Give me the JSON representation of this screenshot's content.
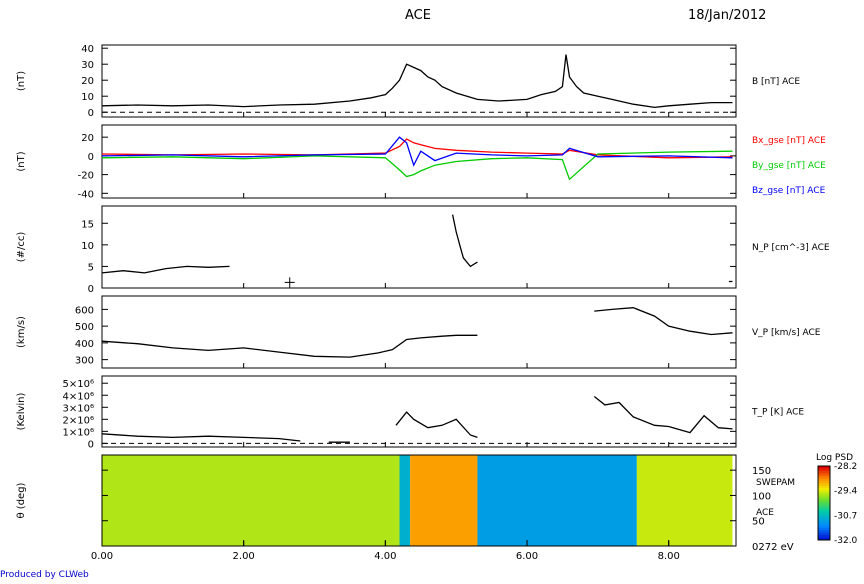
{
  "header": {
    "spacecraft": "ACE",
    "date": "18/Jan/2012"
  },
  "footer": {
    "produced_by": "Produced by CLWeb"
  },
  "colors": {
    "bx": "#ff0000",
    "by": "#00cc00",
    "bz": "#0000ff",
    "trace": "#000000"
  },
  "chart_data": [
    {
      "id": "panel-b",
      "type": "line",
      "ylabel": "(nT)",
      "ylim": [
        -3,
        42
      ],
      "yticks": [
        0,
        10,
        20,
        30,
        40
      ],
      "ytick_labels": [
        "0",
        "10",
        "20",
        "30",
        "40"
      ],
      "series": [
        {
          "name": "B [nT] ACE",
          "color": "#000000",
          "x": [
            0.0,
            0.5,
            1.0,
            1.5,
            2.0,
            2.5,
            3.0,
            3.5,
            3.8,
            4.0,
            4.1,
            4.2,
            4.3,
            4.4,
            4.5,
            4.6,
            4.7,
            4.8,
            5.0,
            5.3,
            5.6,
            6.0,
            6.2,
            6.4,
            6.5,
            6.55,
            6.6,
            6.7,
            6.8,
            7.0,
            7.2,
            7.5,
            7.8,
            8.0,
            8.3,
            8.6,
            8.9
          ],
          "y": [
            4,
            4.5,
            4,
            4.5,
            3.5,
            4.5,
            5,
            7,
            9,
            11,
            15,
            20,
            30,
            28,
            26,
            22,
            20,
            16,
            12,
            8,
            7,
            8,
            11,
            13,
            16,
            36,
            22,
            16,
            12,
            10,
            8,
            5,
            3,
            4,
            5,
            6,
            6
          ]
        }
      ],
      "reference_line_y": 0
    },
    {
      "id": "panel-bxyz",
      "type": "line",
      "ylabel": "(nT)",
      "ylim": [
        -45,
        33
      ],
      "yticks": [
        -40,
        -20,
        0,
        20
      ],
      "ytick_labels": [
        "-40",
        "-20",
        "0",
        "20"
      ],
      "series": [
        {
          "name": "Bx_gse [nT] ACE",
          "color": "#ff0000",
          "x": [
            0.0,
            1.0,
            2.0,
            3.0,
            4.0,
            4.2,
            4.3,
            4.4,
            4.5,
            4.7,
            5.0,
            5.5,
            6.0,
            6.5,
            6.6,
            7.0,
            8.0,
            8.9
          ],
          "y": [
            2,
            1,
            2,
            1,
            3,
            10,
            18,
            14,
            12,
            8,
            6,
            4,
            3,
            2,
            6,
            1,
            -2,
            -1
          ]
        },
        {
          "name": "By_gse [nT] ACE",
          "color": "#00cc00",
          "x": [
            0.0,
            1.0,
            2.0,
            3.0,
            4.0,
            4.2,
            4.3,
            4.4,
            4.5,
            4.7,
            5.0,
            5.5,
            6.0,
            6.5,
            6.6,
            7.0,
            8.0,
            8.9
          ],
          "y": [
            -2,
            -1,
            -3,
            0,
            -2,
            -15,
            -22,
            -20,
            -16,
            -10,
            -6,
            -3,
            -2,
            -4,
            -25,
            2,
            4,
            5
          ]
        },
        {
          "name": "Bz_gse [nT] ACE",
          "color": "#0000ff",
          "x": [
            0.0,
            1.0,
            2.0,
            3.0,
            4.0,
            4.2,
            4.3,
            4.4,
            4.5,
            4.7,
            5.0,
            5.5,
            6.0,
            6.5,
            6.6,
            7.0,
            8.0,
            8.9
          ],
          "y": [
            0,
            1,
            -1,
            1,
            2,
            20,
            14,
            -10,
            5,
            -5,
            3,
            1,
            0,
            1,
            8,
            -1,
            0,
            -2
          ]
        }
      ]
    },
    {
      "id": "panel-np",
      "type": "line",
      "ylabel": "(#/cc)",
      "ylim": [
        0,
        19
      ],
      "yticks": [
        0,
        5,
        10,
        15
      ],
      "ytick_labels": [
        "0",
        "5",
        "10",
        "15"
      ],
      "series": [
        {
          "name": "N_P [cm^-3] ACE",
          "color": "#000000",
          "segments": [
            {
              "x": [
                0.0,
                0.3,
                0.6,
                0.9,
                1.2,
                1.5,
                1.8
              ],
              "y": [
                3.5,
                4,
                3.5,
                4.5,
                5,
                4.8,
                5
              ]
            },
            {
              "x": [
                4.95,
                5.0,
                5.05,
                5.1,
                5.2,
                5.3
              ],
              "y": [
                17,
                13,
                10,
                7,
                5,
                6
              ]
            },
            {
              "x": [
                8.85,
                8.9
              ],
              "y": [
                1.5,
                1.5
              ]
            }
          ]
        }
      ],
      "markers": [
        {
          "x": 2.65,
          "y": 1.3,
          "symbol": "+"
        }
      ],
      "label_text": "N_P [cm^-3] ACE"
    },
    {
      "id": "panel-vp",
      "type": "line",
      "ylabel": "(km/s)",
      "ylim": [
        250,
        680
      ],
      "yticks": [
        300,
        400,
        500,
        600
      ],
      "ytick_labels": [
        "300",
        "400",
        "500",
        "600"
      ],
      "series": [
        {
          "name": "V_P [km/s] ACE",
          "color": "#000000",
          "segments": [
            {
              "x": [
                0.0,
                0.5,
                1.0,
                1.5,
                2.0,
                2.5,
                3.0,
                3.5,
                3.9,
                4.1,
                4.3,
                4.5,
                4.8,
                5.0,
                5.3
              ],
              "y": [
                410,
                395,
                370,
                355,
                370,
                345,
                320,
                315,
                340,
                360,
                420,
                430,
                440,
                445,
                445
              ]
            },
            {
              "x": [
                6.95,
                7.2,
                7.5,
                7.8,
                8.0,
                8.3,
                8.6,
                8.9
              ],
              "y": [
                590,
                600,
                610,
                560,
                500,
                470,
                450,
                460
              ]
            }
          ]
        }
      ]
    },
    {
      "id": "panel-tp",
      "type": "line",
      "ylabel": "(Kelvin)",
      "ylim": [
        -300000,
        5600000
      ],
      "yticks": [
        0,
        1000000,
        2000000,
        3000000,
        4000000,
        5000000
      ],
      "ytick_labels": [
        "0",
        "1×10⁶",
        "2×10⁶",
        "3×10⁶",
        "4×10⁶",
        "5×10⁶"
      ],
      "series": [
        {
          "name": "T_P [K] ACE",
          "color": "#000000",
          "segments": [
            {
              "x": [
                0.0,
                0.5,
                1.0,
                1.5,
                2.0,
                2.5,
                2.8
              ],
              "y": [
                800000,
                600000,
                500000,
                600000,
                500000,
                400000,
                200000
              ]
            },
            {
              "x": [
                3.2,
                3.5
              ],
              "y": [
                100000,
                100000
              ]
            },
            {
              "x": [
                4.15,
                4.3,
                4.4,
                4.6,
                4.8,
                5.0,
                5.2,
                5.3
              ],
              "y": [
                1500000,
                2600000,
                2000000,
                1300000,
                1500000,
                2000000,
                700000,
                500000
              ]
            },
            {
              "x": [
                6.95,
                7.1,
                7.3,
                7.5,
                7.8,
                8.0,
                8.3,
                8.5,
                8.7,
                8.9
              ],
              "y": [
                3900000,
                3200000,
                3400000,
                2200000,
                1500000,
                1400000,
                900000,
                2300000,
                1300000,
                1200000
              ]
            }
          ]
        }
      ],
      "reference_line_y": 0
    },
    {
      "id": "panel-spectrogram",
      "type": "heatmap",
      "ylabel": "θ (deg)",
      "ylim": [
        0,
        180
      ],
      "yticks": [
        0,
        50,
        100,
        150
      ],
      "ytick_labels": [
        "0272 eV",
        "50",
        "100",
        "150"
      ],
      "right_labels": [
        "SWEPAM",
        "ACE"
      ],
      "colorbar": {
        "title": "Log PSD",
        "min": -32.0,
        "max": -28.2,
        "tick_labels": [
          "-28.2",
          "-29.4",
          "-30.7",
          "-32.0"
        ]
      },
      "time_bands": [
        {
          "x0": 0.0,
          "x1": 4.2,
          "level": -29.6
        },
        {
          "x0": 4.2,
          "x1": 4.35,
          "level": -30.8
        },
        {
          "x0": 4.35,
          "x1": 5.3,
          "level": -28.9
        },
        {
          "x0": 5.3,
          "x1": 7.55,
          "level": -31.0
        },
        {
          "x0": 7.55,
          "x1": 8.9,
          "level": -29.5
        }
      ]
    }
  ],
  "x_axis": {
    "xlim": [
      0.0,
      8.95
    ],
    "ticks": [
      0.0,
      2.0,
      4.0,
      6.0,
      8.0
    ],
    "tick_labels": [
      "0.00",
      "2.00",
      "4.00",
      "6.00",
      "8.00"
    ]
  }
}
